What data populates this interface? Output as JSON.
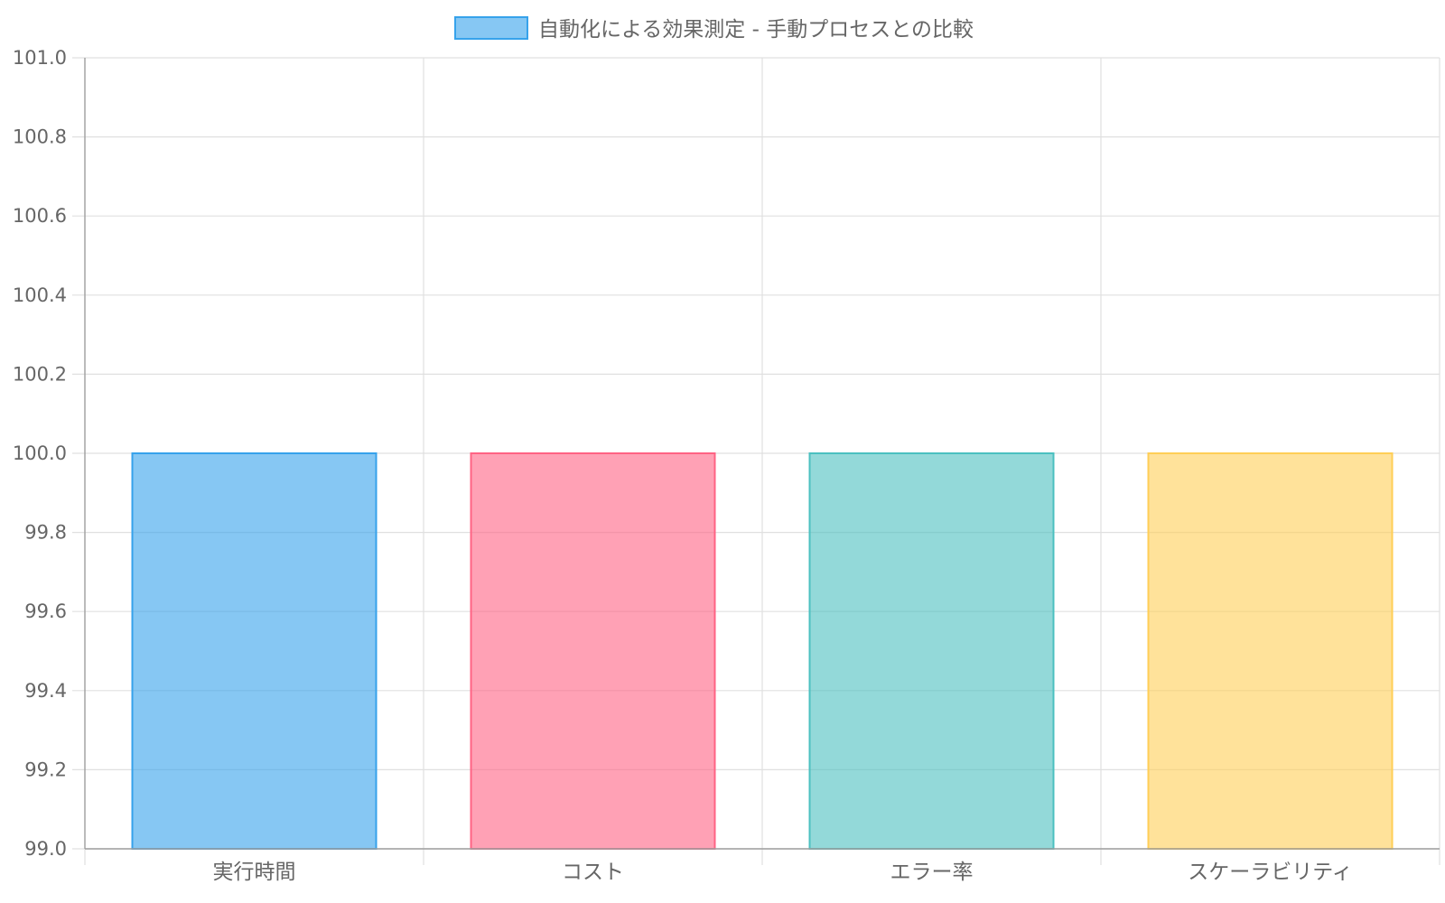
{
  "chart_data": {
    "type": "bar",
    "categories": [
      "実行時間",
      "コスト",
      "エラー率",
      "スケーラビリティ"
    ],
    "series": [
      {
        "name": "自動化による効果測定 - 手動プロセスとの比較",
        "values": [
          100,
          100,
          100,
          100
        ],
        "colors": [
          "#36A2EB",
          "#FF6384",
          "#4BC0C0",
          "#FFCE56"
        ]
      }
    ],
    "ylim": [
      99.0,
      101.0
    ],
    "yticks": [
      "99.0",
      "99.2",
      "99.4",
      "99.6",
      "99.8",
      "100.0",
      "100.2",
      "100.4",
      "100.6",
      "100.8",
      "101.0"
    ],
    "grid": true,
    "legend_position": "top"
  }
}
